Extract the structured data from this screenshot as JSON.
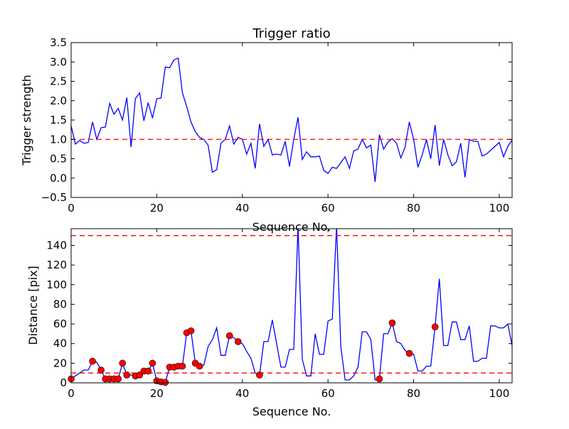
{
  "chart_data": [
    {
      "type": "line",
      "title": "Trigger ratio",
      "xlabel": "Sequence No.",
      "ylabel": "Trigger strength",
      "xlim": [
        0,
        103
      ],
      "ylim": [
        -0.5,
        3.5
      ],
      "xticks": [
        0,
        20,
        40,
        60,
        80,
        100
      ],
      "yticks": [
        -0.5,
        0.0,
        0.5,
        1.0,
        1.5,
        2.0,
        2.5,
        3.0,
        3.5
      ],
      "ytick_labels": [
        "−0.5",
        "0.0",
        "0.5",
        "1.0",
        "1.5",
        "2.0",
        "2.5",
        "3.0",
        "3.5"
      ],
      "threshold_lines": [
        1.0
      ],
      "series": [
        {
          "name": "trigger strength",
          "color": "#0000ff",
          "values": [
            1.35,
            0.88,
            0.97,
            0.9,
            0.92,
            1.45,
            1.0,
            1.3,
            1.32,
            1.93,
            1.65,
            1.8,
            1.5,
            2.08,
            0.8,
            2.05,
            2.2,
            1.48,
            1.95,
            1.55,
            2.05,
            2.07,
            2.87,
            2.85,
            3.05,
            3.1,
            2.2,
            1.85,
            1.45,
            1.2,
            1.05,
            1.0,
            0.85,
            0.15,
            0.22,
            0.9,
            1.0,
            1.35,
            0.88,
            1.05,
            1.0,
            0.62,
            0.9,
            0.25,
            1.4,
            0.82,
            1.0,
            0.6,
            0.62,
            0.6,
            0.95,
            0.3,
            1.0,
            1.57,
            0.48,
            0.68,
            0.55,
            0.55,
            0.57,
            0.2,
            0.12,
            0.28,
            0.25,
            0.4,
            0.55,
            0.25,
            0.7,
            0.75,
            1.0,
            0.78,
            0.85,
            -0.1,
            1.12,
            0.75,
            0.93,
            1.02,
            0.9,
            0.52,
            0.8,
            1.45,
            1.0,
            0.28,
            0.6,
            1.0,
            0.5,
            1.37,
            0.32,
            1.0,
            0.6,
            0.32,
            0.42,
            0.9,
            0.02,
            1.0,
            0.95,
            0.95,
            0.57,
            0.62,
            0.72,
            0.82,
            0.92,
            0.55,
            0.82,
            0.98
          ]
        }
      ],
      "threshold_color": "#ff0000"
    },
    {
      "type": "line",
      "title": "",
      "xlabel": "Sequence No.",
      "ylabel": "Distance [pix]",
      "xlim": [
        0,
        103
      ],
      "ylim": [
        0,
        157
      ],
      "xticks": [
        0,
        20,
        40,
        60,
        80,
        100
      ],
      "yticks": [
        0,
        20,
        40,
        60,
        80,
        100,
        120,
        140
      ],
      "threshold_lines": [
        10,
        150
      ],
      "series": [
        {
          "name": "distance",
          "color": "#0000ff",
          "values": [
            4,
            7,
            10,
            13,
            13,
            22,
            21,
            13,
            4,
            4,
            4,
            4,
            20,
            8,
            8,
            7,
            8,
            12,
            12,
            20,
            2,
            1,
            0.5,
            16,
            16,
            17,
            17,
            51,
            53,
            20,
            17,
            18,
            37,
            44,
            56,
            28,
            28,
            48,
            46,
            42,
            40,
            32,
            25,
            10,
            8,
            42,
            42,
            64,
            40,
            16,
            16,
            34,
            34,
            160,
            24,
            7,
            7,
            50,
            29,
            29,
            63,
            65,
            160,
            37,
            3,
            3,
            7,
            16,
            52,
            52,
            44,
            3,
            4,
            50,
            50,
            61,
            42,
            40,
            33,
            30,
            29,
            12,
            12,
            17,
            17,
            57,
            106,
            38,
            38,
            62,
            62,
            44,
            44,
            58,
            22,
            22,
            25,
            25,
            58,
            58,
            56,
            56,
            60,
            38
          ]
        }
      ],
      "markers": {
        "color": "#ff0000",
        "x": [
          0,
          5,
          7,
          8,
          9,
          10,
          11,
          12,
          13,
          15,
          16,
          17,
          18,
          19,
          20,
          21,
          22,
          23,
          24,
          25,
          26,
          27,
          28,
          29,
          30,
          37,
          39,
          44,
          72,
          75,
          79,
          85
        ],
        "y": [
          4,
          22,
          13,
          4,
          4,
          4,
          4,
          20,
          8,
          7,
          8,
          12,
          12,
          20,
          2,
          1,
          0.5,
          16,
          16,
          17,
          17,
          51,
          53,
          20,
          17,
          48,
          42,
          8,
          4,
          61,
          30,
          57
        ]
      },
      "threshold_color": "#ff0000"
    }
  ]
}
